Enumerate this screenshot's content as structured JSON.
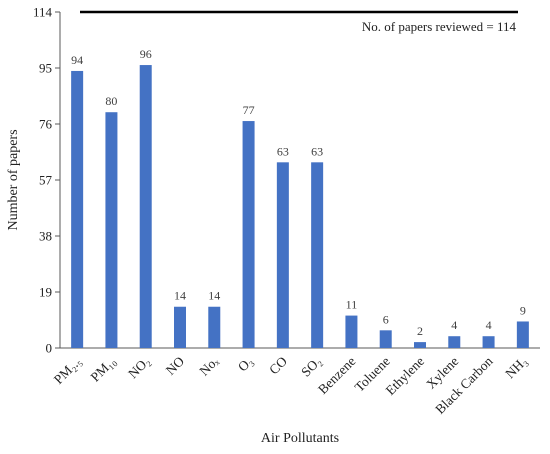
{
  "chart_data": {
    "type": "bar",
    "categories": [
      "PM₂.₅",
      "PM₁₀",
      "NO₂",
      "NO",
      "Noₓ",
      "O₃",
      "CO",
      "SO₂",
      "Benzene",
      "Toluene",
      "Ethylene",
      "Xylene",
      "Black Carbon",
      "NH₃"
    ],
    "values": [
      94,
      80,
      96,
      14,
      14,
      77,
      63,
      63,
      11,
      6,
      2,
      4,
      4,
      9
    ],
    "xlabel": "Air Pollutants",
    "ylabel": "Number of papers",
    "ylim": [
      0,
      114
    ],
    "yticks": [
      0,
      19,
      38,
      57,
      76,
      95,
      114
    ],
    "reference_line": {
      "value": 114,
      "label": "No. of papers reviewed = 114"
    },
    "bar_color": "#4472c4",
    "grid": false,
    "data_labels": true
  }
}
